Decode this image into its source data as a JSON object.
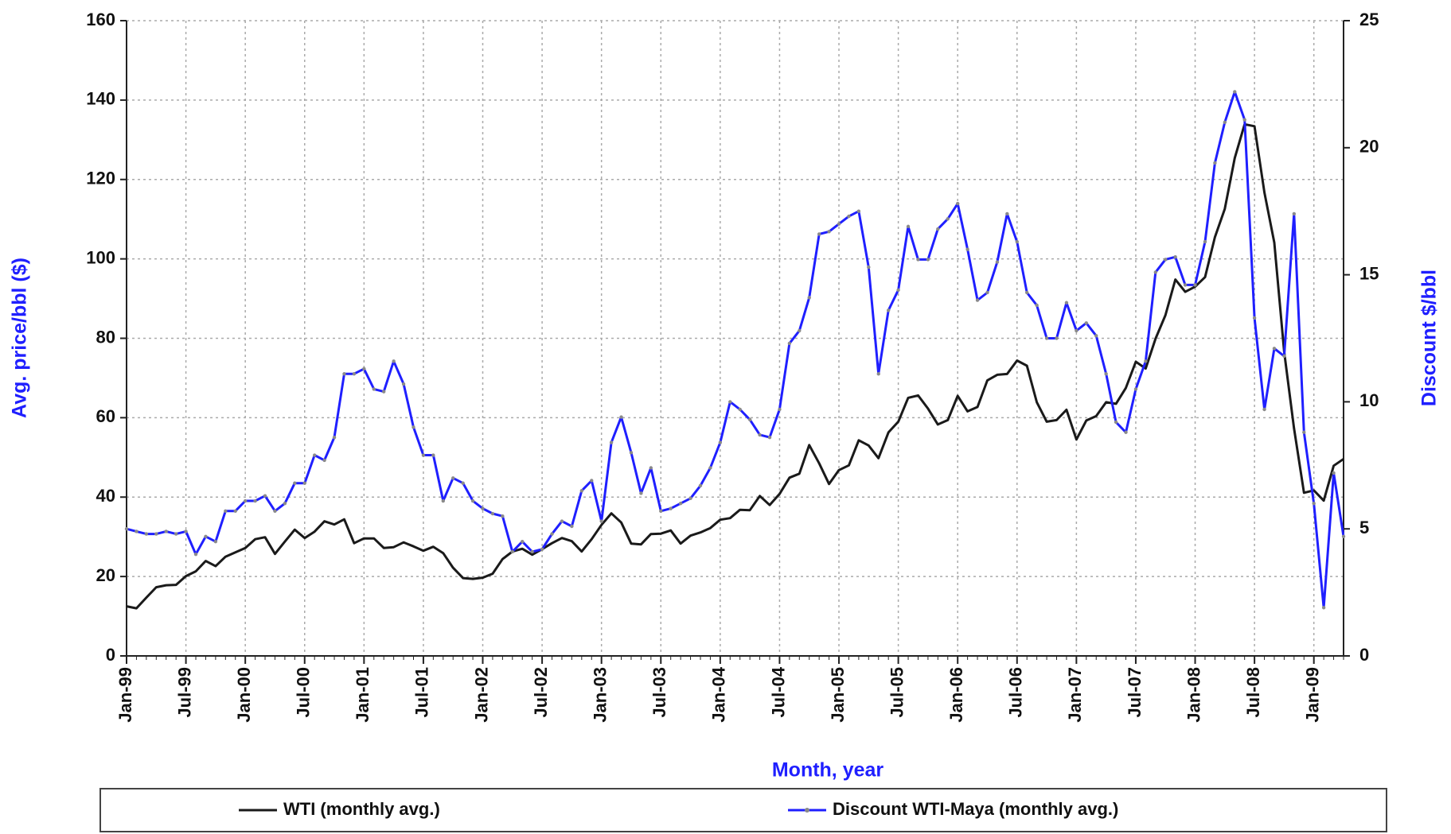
{
  "chart_data": {
    "type": "line",
    "xlabel": "Month, year",
    "ylabel": "Avg. price/bbl ($)",
    "y2label": "Discount $/bbl",
    "categories": [
      "Jan-99",
      null,
      null,
      null,
      null,
      null,
      "Jul-99",
      null,
      null,
      null,
      null,
      null,
      "Jan-00",
      null,
      null,
      null,
      null,
      null,
      "Jul-00",
      null,
      null,
      null,
      null,
      null,
      "Jan-01",
      null,
      null,
      null,
      null,
      null,
      "Jul-01",
      null,
      null,
      null,
      null,
      null,
      "Jan-02",
      null,
      null,
      null,
      null,
      null,
      "Jul-02",
      null,
      null,
      null,
      null,
      null,
      "Jan-03",
      null,
      null,
      null,
      null,
      null,
      "Jul-03",
      null,
      null,
      null,
      null,
      null,
      "Jan-04",
      null,
      null,
      null,
      null,
      null,
      "Jul-04",
      null,
      null,
      null,
      null,
      null,
      "Jan-05",
      null,
      null,
      null,
      null,
      null,
      "Jul-05",
      null,
      null,
      null,
      null,
      null,
      "Jan-06",
      null,
      null,
      null,
      null,
      null,
      "Jul-06",
      null,
      null,
      null,
      null,
      null,
      "Jan-07",
      null,
      null,
      null,
      null,
      null,
      "Jul-07",
      null,
      null,
      null,
      null,
      null,
      "Jan-08",
      null,
      null,
      null,
      null,
      null,
      "Jul-08",
      null,
      null,
      null,
      null,
      null,
      "Jan-09",
      null,
      null,
      null
    ],
    "series": [
      {
        "name": "WTI (monthly avg.)",
        "color": "#1a1a1a",
        "axis": "y",
        "values": [
          12.5,
          12.0,
          14.7,
          17.3,
          17.8,
          17.9,
          20.1,
          21.3,
          23.9,
          22.6,
          25.0,
          26.1,
          27.2,
          29.4,
          29.9,
          25.7,
          28.8,
          31.8,
          29.7,
          31.3,
          33.9,
          33.1,
          34.4,
          28.4,
          29.6,
          29.6,
          27.2,
          27.4,
          28.6,
          27.6,
          26.5,
          27.5,
          25.9,
          22.2,
          19.6,
          19.4,
          19.7,
          20.7,
          24.4,
          26.3,
          27.0,
          25.5,
          26.9,
          28.4,
          29.7,
          28.9,
          26.3,
          29.4,
          33.0,
          35.9,
          33.6,
          28.3,
          28.1,
          30.7,
          30.8,
          31.6,
          28.3,
          30.3,
          31.1,
          32.2,
          34.3,
          34.7,
          36.8,
          36.7,
          40.3,
          38.0,
          40.8,
          44.9,
          45.9,
          53.1,
          48.5,
          43.3,
          46.8,
          48.0,
          54.3,
          53.0,
          49.8,
          56.3,
          59.0,
          65.0,
          65.6,
          62.3,
          58.3,
          59.4,
          65.5,
          61.6,
          62.7,
          69.4,
          70.8,
          71.0,
          74.4,
          73.1,
          63.9,
          59.0,
          59.4,
          62.0,
          54.5,
          59.3,
          60.4,
          63.9,
          63.5,
          67.5,
          74.1,
          72.4,
          79.9,
          85.8,
          94.8,
          91.7,
          93.0,
          95.4,
          105.5,
          112.6,
          125.4,
          133.9,
          133.4,
          116.7,
          104.1,
          76.6,
          57.3,
          41.1,
          41.7,
          39.1,
          47.9,
          49.6
        ]
      },
      {
        "name": "Discount WTI-Maya (monthly avg.)",
        "color": "#1f1fff",
        "axis": "y2",
        "values": [
          5.0,
          4.9,
          4.8,
          4.8,
          4.9,
          4.8,
          4.9,
          4.0,
          4.7,
          4.5,
          5.7,
          5.7,
          6.1,
          6.1,
          6.3,
          5.7,
          6.0,
          6.8,
          6.8,
          7.9,
          7.7,
          8.6,
          11.1,
          11.1,
          11.3,
          10.5,
          10.4,
          11.6,
          10.7,
          9.0,
          7.9,
          7.9,
          6.1,
          7.0,
          6.8,
          6.1,
          5.8,
          5.6,
          5.5,
          4.1,
          4.5,
          4.1,
          4.2,
          4.8,
          5.3,
          5.1,
          6.5,
          6.9,
          5.3,
          8.4,
          9.4,
          8.0,
          6.4,
          7.4,
          5.7,
          5.8,
          6.0,
          6.2,
          6.7,
          7.4,
          8.4,
          10.0,
          9.7,
          9.3,
          8.7,
          8.6,
          9.7,
          12.3,
          12.8,
          14.1,
          16.6,
          16.7,
          17.0,
          17.3,
          17.5,
          15.3,
          11.1,
          13.6,
          14.4,
          16.9,
          15.6,
          15.6,
          16.8,
          17.2,
          17.8,
          16.0,
          14.0,
          14.3,
          15.5,
          17.4,
          16.3,
          14.3,
          13.8,
          12.5,
          12.5,
          13.9,
          12.8,
          13.1,
          12.6,
          11.1,
          9.2,
          8.8,
          10.5,
          11.6,
          15.1,
          15.6,
          15.7,
          14.6,
          14.6,
          16.3,
          19.4,
          21.0,
          22.2,
          21.1,
          13.3,
          9.7,
          12.1,
          11.8,
          17.4,
          8.8,
          6.0,
          1.9,
          7.2,
          4.7
        ]
      }
    ],
    "ylim": [
      0,
      160
    ],
    "yticks": [
      0,
      20,
      40,
      60,
      80,
      100,
      120,
      140,
      160
    ],
    "y2lim": [
      0,
      25
    ],
    "y2ticks": [
      0,
      5,
      10,
      15,
      20,
      25
    ],
    "grid": true,
    "legend": "bottom"
  }
}
